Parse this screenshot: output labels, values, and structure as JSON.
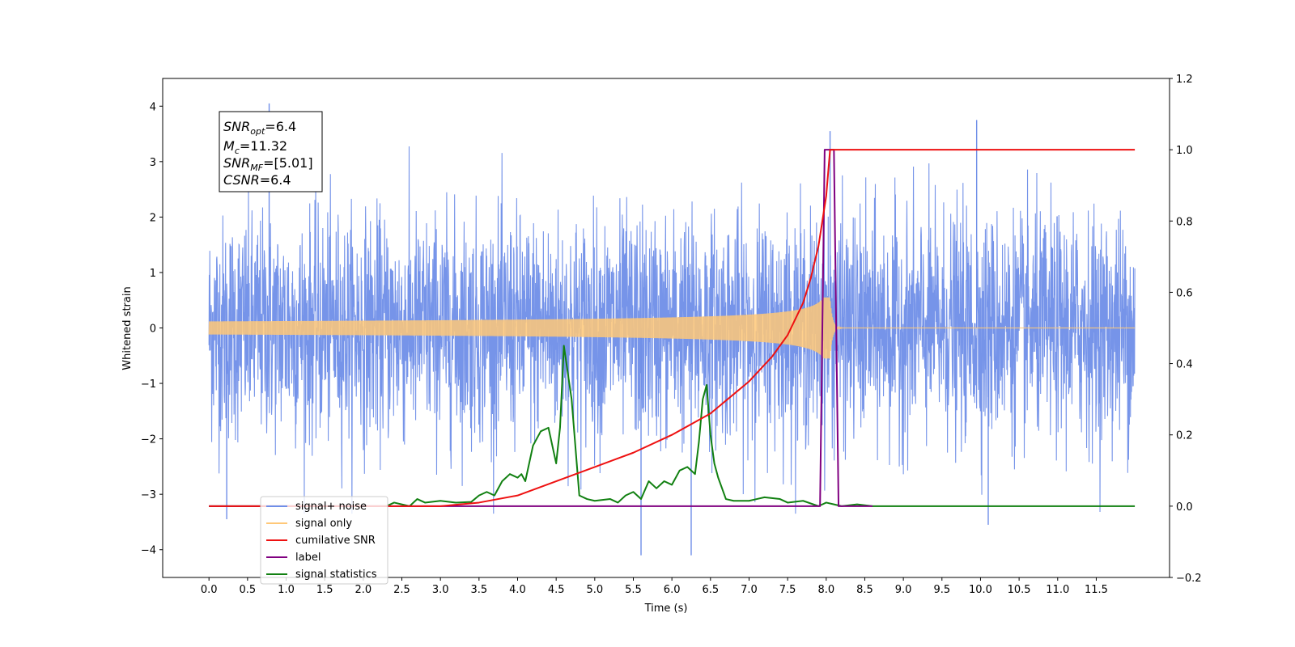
{
  "chart_data": {
    "type": "line",
    "title": "",
    "xlabel": "Time (s)",
    "ylabel": "Whitened strain",
    "y2label": "",
    "xlim": [
      -0.6,
      12.45
    ],
    "ylim": [
      -4.5,
      4.5
    ],
    "y2lim": [
      -0.2,
      1.2
    ],
    "xticks": [
      "0.0",
      "0.5",
      "1.0",
      "1.5",
      "2.0",
      "2.5",
      "3.0",
      "3.5",
      "4.0",
      "4.5",
      "5.0",
      "5.5",
      "6.0",
      "6.5",
      "7.0",
      "7.5",
      "8.0",
      "8.5",
      "9.0",
      "9.5",
      "10.0",
      "10.5",
      "11.0",
      "11.5"
    ],
    "yticks": [
      "4",
      "3",
      "2",
      "1",
      "0",
      "−1",
      "−2",
      "−3",
      "−4"
    ],
    "y2ticks": [
      "1.2",
      "1.0",
      "0.8",
      "0.6",
      "0.4",
      "0.2",
      "0.0",
      "−0.2"
    ],
    "grid": false,
    "legend_position": "lower-left",
    "legend": [
      {
        "label": "signal+ noise",
        "color": "#6f8ee8"
      },
      {
        "label": "signal only",
        "color": "#ffc878"
      },
      {
        "label": "cumilative SNR",
        "color": "#ee1111"
      },
      {
        "label": "label",
        "color": "#800080"
      },
      {
        "label": "signal statistics",
        "color": "#118011"
      }
    ],
    "annotation": {
      "lines": [
        {
          "base": "SNR",
          "sub": "opt",
          "value": "=6.4"
        },
        {
          "base": "M",
          "sub": "c",
          "value": "=11.32"
        },
        {
          "base": "SNR",
          "sub": "MF",
          "value": "=[5.01]"
        },
        {
          "base": "CSNR",
          "sub": "",
          "value": "=6.4"
        }
      ]
    },
    "series": [
      {
        "name": "signal+ noise",
        "axis": "left",
        "color": "#6f8ee8",
        "t_range": [
          0.0,
          12.0
        ],
        "envelope_std": 1.0,
        "notable_peaks": [
          [
            0.78,
            4.05
          ],
          [
            9.95,
            3.75
          ],
          [
            5.6,
            -4.1
          ],
          [
            6.25,
            -4.1
          ],
          [
            0.23,
            -3.45
          ],
          [
            10.1,
            -3.55
          ],
          [
            8.05,
            3.55
          ]
        ]
      },
      {
        "name": "signal only",
        "axis": "left",
        "color": "#ffc878",
        "chirp": {
          "t_start": 0.0,
          "t_merge": 8.05,
          "t_end": 12.0,
          "peak_amplitude": 0.55
        }
      },
      {
        "name": "cumilative SNR",
        "axis": "right",
        "color": "#ee1111",
        "x": [
          0.0,
          3.0,
          3.5,
          4.0,
          4.5,
          5.0,
          5.5,
          6.0,
          6.5,
          7.0,
          7.3,
          7.5,
          7.7,
          7.8,
          7.9,
          8.0,
          8.05,
          8.1,
          12.0
        ],
        "y": [
          0.0,
          0.0,
          0.01,
          0.03,
          0.07,
          0.11,
          0.15,
          0.2,
          0.26,
          0.35,
          0.42,
          0.48,
          0.57,
          0.64,
          0.73,
          0.87,
          1.0,
          1.0,
          1.0
        ]
      },
      {
        "name": "label",
        "axis": "right",
        "color": "#800080",
        "x": [
          0.0,
          7.92,
          7.98,
          8.1,
          8.16,
          8.6
        ],
        "y": [
          0.0,
          0.0,
          1.0,
          1.0,
          0.0,
          0.0
        ]
      },
      {
        "name": "signal statistics",
        "axis": "right",
        "color": "#118011",
        "x": [
          0.0,
          2.3,
          2.4,
          2.6,
          2.7,
          2.8,
          3.0,
          3.2,
          3.4,
          3.5,
          3.6,
          3.7,
          3.8,
          3.9,
          4.0,
          4.05,
          4.1,
          4.2,
          4.3,
          4.4,
          4.45,
          4.5,
          4.55,
          4.6,
          4.7,
          4.8,
          4.9,
          5.0,
          5.2,
          5.3,
          5.4,
          5.5,
          5.6,
          5.7,
          5.8,
          5.9,
          6.0,
          6.1,
          6.2,
          6.25,
          6.3,
          6.35,
          6.4,
          6.45,
          6.5,
          6.55,
          6.6,
          6.7,
          6.8,
          7.0,
          7.1,
          7.2,
          7.4,
          7.5,
          7.7,
          7.9,
          8.0,
          8.1,
          8.2,
          8.4,
          8.6,
          8.8,
          12.0
        ],
        "y": [
          0.0,
          0.0,
          0.01,
          0.0,
          0.02,
          0.01,
          0.015,
          0.01,
          0.012,
          0.03,
          0.04,
          0.03,
          0.07,
          0.09,
          0.08,
          0.09,
          0.07,
          0.17,
          0.21,
          0.22,
          0.17,
          0.12,
          0.22,
          0.45,
          0.3,
          0.03,
          0.02,
          0.015,
          0.02,
          0.01,
          0.03,
          0.04,
          0.02,
          0.07,
          0.05,
          0.07,
          0.06,
          0.1,
          0.11,
          0.1,
          0.09,
          0.18,
          0.3,
          0.34,
          0.2,
          0.12,
          0.08,
          0.02,
          0.015,
          0.015,
          0.02,
          0.025,
          0.02,
          0.01,
          0.015,
          0.0,
          0.01,
          0.005,
          0.0,
          0.005,
          0.0,
          0.0,
          0.0
        ]
      }
    ]
  }
}
